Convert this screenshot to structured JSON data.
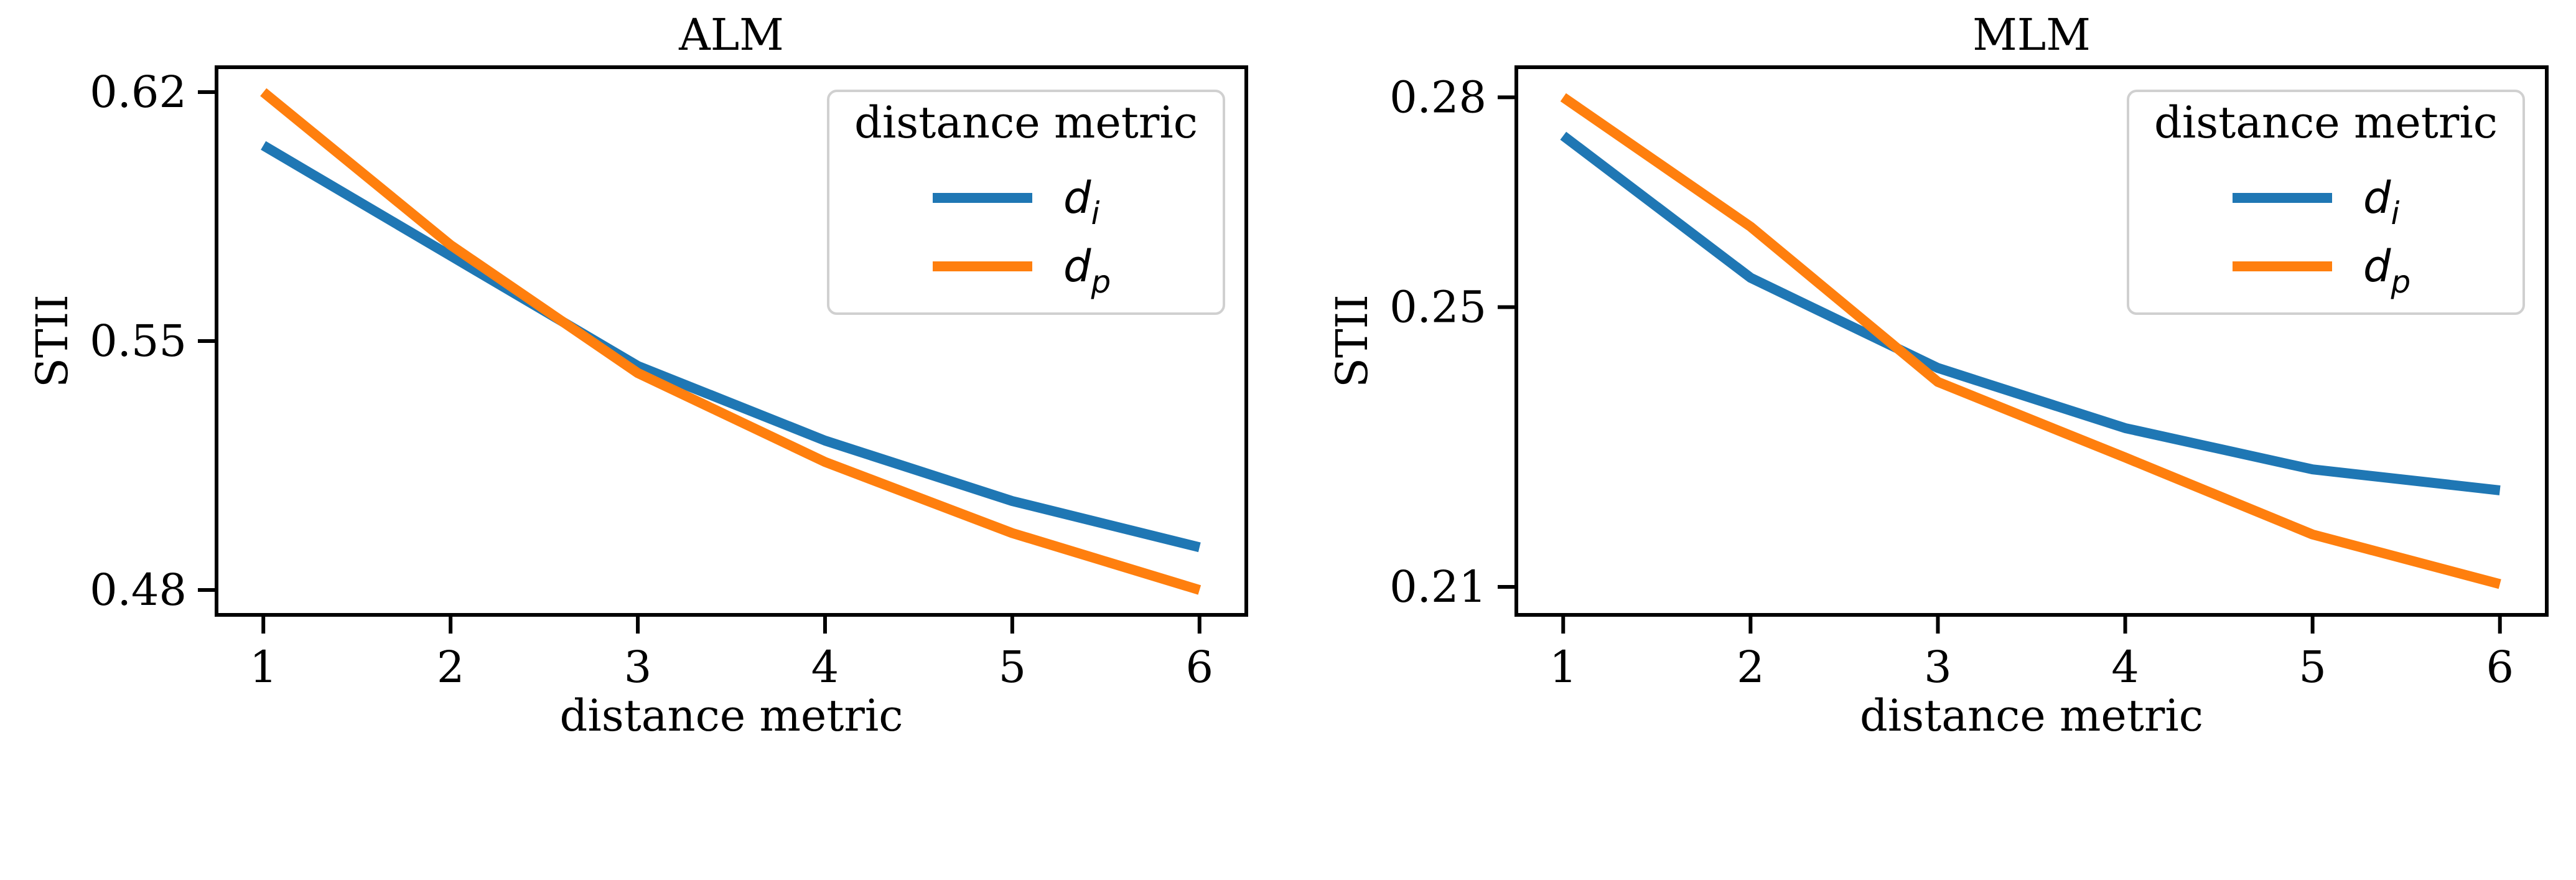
{
  "chart_data": [
    {
      "type": "line",
      "title": "ALM",
      "xlabel": "distance metric",
      "ylabel": "STII",
      "x": [
        1,
        2,
        3,
        4,
        5,
        6
      ],
      "xticks": [
        "1",
        "2",
        "3",
        "4",
        "5",
        "6"
      ],
      "yticks": [
        0.48,
        0.55,
        0.62
      ],
      "ytick_labels": [
        "0.48",
        "0.55",
        "0.62"
      ],
      "xlim": [
        0.75,
        6.25
      ],
      "ylim": [
        0.473,
        0.627
      ],
      "legend": {
        "title": "distance metric",
        "placement": "top-right"
      },
      "series": [
        {
          "name": "d",
          "subscript": "i",
          "color": "#1f77b4",
          "values": [
            0.605,
            0.574,
            0.543,
            0.522,
            0.505,
            0.492
          ]
        },
        {
          "name": "d",
          "subscript": "p",
          "color": "#ff7f0e",
          "values": [
            0.62,
            0.577,
            0.541,
            0.516,
            0.496,
            0.48
          ]
        }
      ]
    },
    {
      "type": "line",
      "title": "MLM",
      "xlabel": "distance metric",
      "ylabel": "STII",
      "x": [
        1,
        2,
        3,
        4,
        5,
        6
      ],
      "xticks": [
        "1",
        "2",
        "3",
        "4",
        "5",
        "6"
      ],
      "yticks": [
        0.21,
        0.25,
        0.28
      ],
      "ytick_labels": [
        "0.21",
        "0.25",
        "0.28"
      ],
      "xlim": [
        0.75,
        6.25
      ],
      "ylim": [
        0.206,
        0.2843
      ],
      "legend": {
        "title": "distance metric",
        "placement": "top-right"
      },
      "series": [
        {
          "name": "d",
          "subscript": "i",
          "color": "#1f77b4",
          "values": [
            0.2745,
            0.2542,
            0.2413,
            0.2327,
            0.2268,
            0.2238
          ]
        },
        {
          "name": "d",
          "subscript": "p",
          "color": "#ff7f0e",
          "values": [
            0.28,
            0.2615,
            0.2393,
            0.2285,
            0.2175,
            0.2104
          ]
        }
      ]
    }
  ]
}
